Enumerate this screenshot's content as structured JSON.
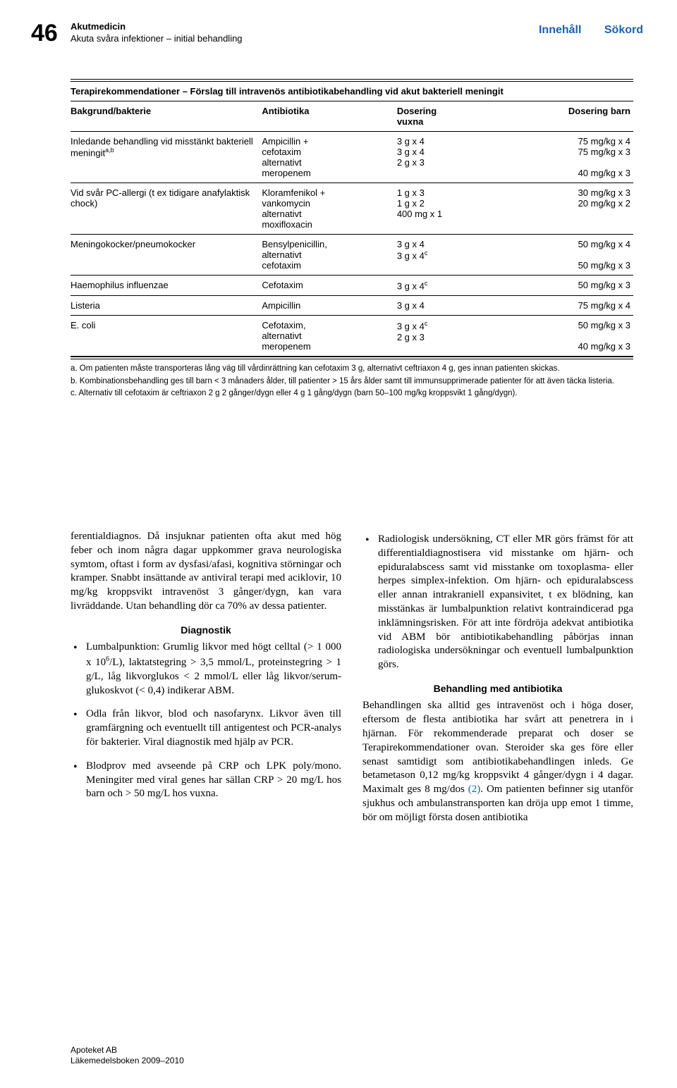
{
  "header": {
    "page_number": "46",
    "chapter": "Akutmedicin",
    "subtitle": "Akuta svåra infektioner – initial behandling",
    "nav_innehall": "Innehåll",
    "nav_sokord": "Sökord",
    "nav_color": "#1a5fb4"
  },
  "table": {
    "title": "Terapirekommendationer – Förslag till intravenös antibiotikabehandling vid akut bakteriell meningit",
    "headers": {
      "c1": "Bakgrund/bakterie",
      "c2": "Antibiotika",
      "c3": "Dosering\nvuxna",
      "c4": "Dosering barn"
    },
    "rows": [
      {
        "c1": "Inledande behandling vid misstänkt bakteriell meningit",
        "c1_sup": "a,b",
        "c2": "Ampicillin +\ncefotaxim\nalternativt\nmeropenem",
        "c3": "3 g x 4\n3 g x 4\n\n2 g x 3",
        "c4": "75 mg/kg x 4\n75 mg/kg x 3\n\n40 mg/kg x 3"
      },
      {
        "c1": "Vid svår PC-allergi (t ex tidigare anafylaktisk chock)",
        "c2": "Kloramfenikol +\nvankomycin\nalternativt\nmoxifloxacin",
        "c3": "1 g x 3\n1 g x 2\n\n400 mg x 1",
        "c4": "30 mg/kg x 3\n20 mg/kg x 2"
      },
      {
        "c1": "Meningokocker/pneumokocker",
        "c2": "Bensylpenicillin,\nalternativt\ncefotaxim",
        "c3": "3 g x 4\n\n3 g x 4",
        "c3_sup": "c",
        "c4": "50 mg/kg x 4\n\n50 mg/kg x 3"
      },
      {
        "c1": "Haemophilus influenzae",
        "c2": "Cefotaxim",
        "c3": "3 g x 4",
        "c3_sup": "c",
        "c4": "50 mg/kg x 3"
      },
      {
        "c1": "Listeria",
        "c2": "Ampicillin",
        "c3": "3 g x 4",
        "c4": "75 mg/kg x 4"
      },
      {
        "c1": "E. coli",
        "c2": "Cefotaxim,\nalternativt\nmeropenem",
        "c3": "3 g x 4\n\n2 g x 3",
        "c3_sup_line0": "c",
        "c4": "50 mg/kg x 3\n\n40 mg/kg x 3"
      }
    ],
    "footnotes": [
      "a. Om patienten måste transporteras lång väg till vårdinrättning kan cefotaxim 3 g, alternativt ceftriaxon 4 g, ges innan patienten skickas.",
      "b. Kombinationsbehandling ges till barn < 3 månaders ålder, till patienter > 15 års ålder samt till immunsupprimerade patienter för att även täcka listeria.",
      "c. Alternativ till cefotaxim är ceftriaxon 2 g 2 gånger/dygn eller 4 g 1 gång/dygn (barn 50–100 mg/kg kroppsvikt 1 gång/dygn)."
    ]
  },
  "body": {
    "left": {
      "para1": "ferentialdiagnos. Då insjuknar patienten ofta akut med hög feber och inom några dagar uppkommer grava neurologiska symtom, oftast i form av dysfasi/afasi, kognitiva störningar och kramper. Snabbt insättande av antiviral terapi med aciklovir, 10 mg/kg kroppsvikt intravenöst 3 gånger/dygn, kan vara livräddande. Utan behandling dör ca 70% av dessa patienter.",
      "h_diagnostik": "Diagnostik",
      "li1a": "Lumbalpunktion: Grumlig likvor med högt celltal (> 1 000 x 10",
      "li1_sup": "6",
      "li1b": "/L), laktatstegring > 3,5 mmol/L, proteinstegring > 1 g/L, låg likvorglukos < 2 mmol/L eller låg likvor/serum-glukoskvot (< 0,4) indikerar ABM.",
      "li2": "Odla från likvor, blod och nasofarynx. Likvor även till gramfärgning och eventuellt till antigentest och PCR-analys för bakterier. Viral diagnostik med hjälp av PCR.",
      "li3": "Blodprov med avseende på CRP och LPK poly/mono. Meningiter med viral genes har sällan CRP > 20 mg/L hos barn och > 50 mg/L hos vuxna."
    },
    "right": {
      "li1": "Radiologisk undersökning, CT eller MR görs främst för att differentialdiagnostisera vid misstanke om hjärn- och epiduralabscess samt vid misstanke om toxoplasma- eller herpes simplex-infektion. Om hjärn- och epiduralabscess eller annan intrakraniell expansivitet, t ex blödning, kan misstänkas är lumbalpunktion relativt kontraindicerad pga inklämningsrisken. För att inte fördröja adekvat antibiotika vid ABM bör antibiotikabehandling påbörjas innan radiologiska undersökningar och eventuell lumbalpunktion görs.",
      "h_behandling": "Behandling med antibiotika",
      "para2a": "Behandlingen ska alltid ges intravenöst och i höga doser, eftersom de flesta antibiotika har svårt att penetrera in i hjärnan. För rekommenderade preparat och doser se Terapirekommendationer ovan. Steroider ska ges före eller senast samtidigt som antibiotikabehandlingen inleds. Ge betametason 0,12 mg/kg kroppsvikt 4 gånger/dygn i 4 dagar. Maximalt ges 8 mg/dos ",
      "ref": "(2)",
      "para2b": ". Om patienten befinner sig utanför sjukhus och ambulanstransporten kan dröja upp emot 1 timme, bör om möjligt första dosen antibiotika"
    }
  },
  "footer": {
    "line1": "Apoteket AB",
    "line2": "Läkemedelsboken 2009–2010"
  }
}
